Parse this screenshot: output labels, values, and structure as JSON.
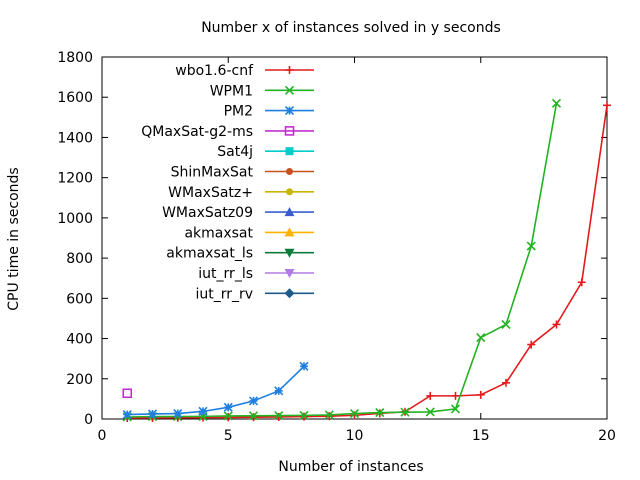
{
  "chart_data": {
    "type": "line",
    "title": "Number x of instances solved in y seconds",
    "xlabel": "Number of instances",
    "ylabel": "CPU time in seconds",
    "xlim": [
      0,
      20
    ],
    "ylim": [
      0,
      1800
    ],
    "xticks": [
      0,
      5,
      10,
      15,
      20
    ],
    "yticks": [
      0,
      200,
      400,
      600,
      800,
      1000,
      1200,
      1400,
      1600,
      1800
    ],
    "grid": false,
    "legend_position": "top-left",
    "series": [
      {
        "name": "wbo1.6-cnf",
        "color": "#e41a1c",
        "marker": "plus",
        "x": [
          1,
          2,
          3,
          4,
          5,
          6,
          7,
          8,
          9,
          10,
          11,
          12,
          13,
          14,
          15,
          16,
          17,
          18,
          19,
          20
        ],
        "y": [
          5,
          5,
          6,
          7,
          8,
          9,
          10,
          12,
          14,
          18,
          28,
          36,
          115,
          115,
          120,
          180,
          370,
          470,
          680,
          1560
        ]
      },
      {
        "name": "WPM1",
        "color": "#22b322",
        "marker": "cross",
        "x": [
          1,
          2,
          3,
          4,
          5,
          6,
          7,
          8,
          9,
          10,
          11,
          12,
          13,
          14,
          15,
          16,
          17,
          18
        ],
        "y": [
          10,
          12,
          12,
          13,
          15,
          16,
          17,
          18,
          20,
          27,
          32,
          34,
          35,
          50,
          405,
          470,
          860,
          1570
        ]
      },
      {
        "name": "PM2",
        "color": "#1e7fe0",
        "marker": "star",
        "x": [
          1,
          2,
          3,
          4,
          5,
          6,
          7,
          8
        ],
        "y": [
          22,
          25,
          27,
          38,
          58,
          90,
          140,
          262
        ]
      },
      {
        "name": "QMaxSat-g2-ms",
        "color": "#c030d0",
        "marker": "square",
        "x": [
          1
        ],
        "y": [
          128
        ]
      },
      {
        "name": "Sat4j",
        "color": "#00cccc",
        "marker": "filled-square",
        "x": [],
        "y": []
      },
      {
        "name": "ShinMaxSat",
        "color": "#c8501e",
        "marker": "filled-circle",
        "x": [],
        "y": []
      },
      {
        "name": "WMaxSatz+",
        "color": "#c8b400",
        "marker": "filled-circle",
        "x": [],
        "y": []
      },
      {
        "name": "WMaxSatz09",
        "color": "#3a5fcd",
        "marker": "filled-triangle",
        "x": [],
        "y": []
      },
      {
        "name": "akmaxsat",
        "color": "#ffb300",
        "marker": "filled-triangle",
        "x": [],
        "y": []
      },
      {
        "name": "akmaxsat_ls",
        "color": "#0b7a3a",
        "marker": "filled-triangle-down",
        "x": [],
        "y": []
      },
      {
        "name": "iut_rr_ls",
        "color": "#b07be6",
        "marker": "filled-triangle-down",
        "x": [],
        "y": []
      },
      {
        "name": "iut_rr_rv",
        "color": "#1f5a8a",
        "marker": "filled-diamond",
        "x": [],
        "y": []
      }
    ]
  }
}
